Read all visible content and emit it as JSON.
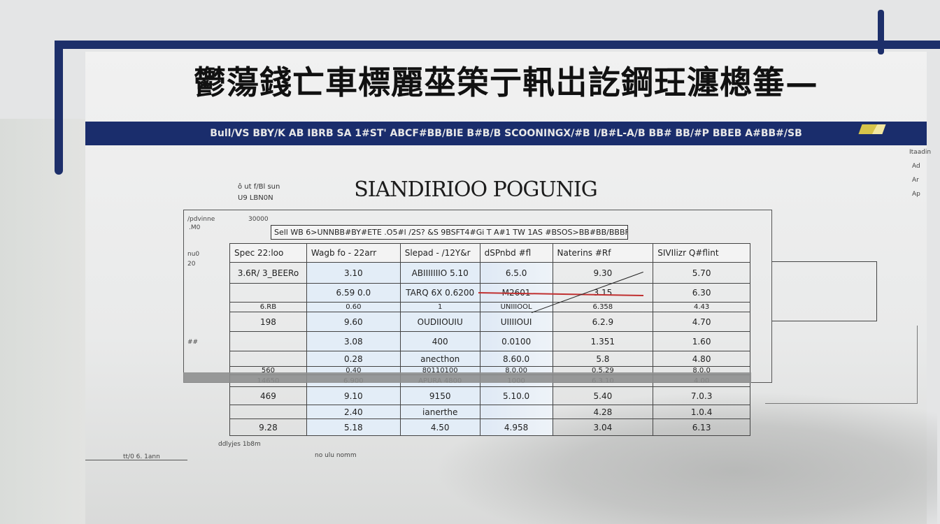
{
  "title": "鬱蕩錢亡車標麗莝筞亍軐岀訖鋼玨瀍樬箠—",
  "band_text": "Bull/VS BBY/K AB IBRB  SA 1#ST'  ABCF#BB/BIE B#B/B SCOONINGX/#B I/B#L-A/B BB# BB/#P BBEB A#BB#/SB",
  "heading": "SIANDIRIOO POGUNIG",
  "left_labels": [
    "/pdvinne",
    ".M0",
    "30000",
    "nu0",
    "20",
    "##"
  ],
  "right_labels": [
    "Itaadin",
    "Ad",
    "Ar",
    "Ap"
  ],
  "top_labels": [
    "ô ut f/Bl sun",
    "U9 LBN0N"
  ],
  "caption": "Sell WB 6>UNNBB#BY#ETE .O5#l /2S? &S 9BSFT4#Gi T A#1 TW 1AS #BSOS>BB#BB/BBBF>",
  "table": {
    "headers": [
      "Spec 22:loo",
      "Wagb fo - 22arr",
      "Slepad - /12Y&r",
      "dSPnbd #fl",
      "Naterins #Rf",
      "SIVIlizr Q#flint"
    ],
    "rows": [
      [
        "3.6R/ 3_BEERo",
        "3.10",
        "ABIIIIIIIO 5.10",
        "6.5.0",
        "9.30",
        "5.70"
      ],
      [
        "",
        "6.59 0.0",
        "TARQ 6X 0.6200",
        "M2601",
        "3.15",
        "6.30"
      ],
      [
        "6.RB",
        "0.60",
        "1",
        "UNIIIOOL",
        "6.358",
        "4.43"
      ],
      [
        "198",
        "9.60",
        "OUDIIOUIU",
        "UIIIIOUI",
        "6.2.9",
        "4.70"
      ],
      [
        "",
        "3.08",
        "400",
        "0.0100",
        "1.351",
        "1.60"
      ],
      [
        "",
        "0.28",
        "anecthon",
        "8.60.0",
        "5.8",
        "4.80"
      ],
      [
        "560",
        "0.40",
        "80110100",
        "8.0.00",
        "0.5.29",
        "8.0.0"
      ],
      [
        "14650",
        "6.900",
        "APURA 4800",
        "1000",
        "6.3.10",
        "4.00"
      ],
      [
        "469",
        "9.10",
        "9150",
        "5.10.0",
        "5.40",
        "7.0.3"
      ],
      [
        "",
        "2.40",
        "ianerthe",
        "",
        "4.28",
        "1.0.4"
      ],
      [
        "9.28",
        "5.18",
        "4.50",
        "4.958",
        "3.04",
        "6.13"
      ]
    ]
  },
  "bottom_labels": [
    "ddlyjes 1b8m",
    "no ulu nomm",
    "tt/0 6. 1ann"
  ],
  "colors": {
    "navy": "#1a2d6c",
    "cell_blue": "#e3edf7",
    "annotation_red": "#c03030"
  }
}
